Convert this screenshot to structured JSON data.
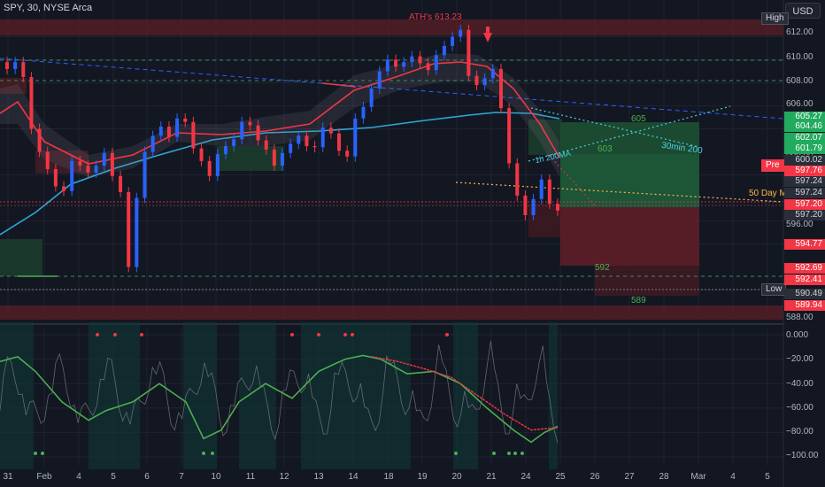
{
  "header": {
    "symbol": "SPY, 30, NYSE Arca",
    "currency": "USD"
  },
  "annotations": {
    "ath": "ATH's 613.23",
    "level_605": "605",
    "level_603": "603",
    "level_592": "592",
    "level_589": "589",
    "fifty_day": "50 Day M",
    "thirty_min": "30min 200",
    "ma_200": "1h 200MA"
  },
  "tags": {
    "high": "High",
    "low": "Low",
    "pre": "Pre"
  },
  "price_axis": {
    "ticks": [
      "612.00",
      "610.00",
      "608.00",
      "606.00",
      "604.00",
      "600.00",
      "596.00",
      "594.00",
      "590.00",
      "588.00"
    ]
  },
  "price_labels": [
    {
      "text": "605.27",
      "kind": "green"
    },
    {
      "text": "604.46",
      "kind": "green"
    },
    {
      "text": "602.07",
      "kind": "green"
    },
    {
      "text": "601.79",
      "kind": "green"
    },
    {
      "text": "600.02",
      "kind": "dark"
    },
    {
      "text": "597.76",
      "kind": "red"
    },
    {
      "text": "597.24",
      "kind": "dark"
    },
    {
      "text": "597.24",
      "kind": "dark"
    },
    {
      "text": "597.20",
      "kind": "red"
    },
    {
      "text": "597.20",
      "kind": "dark"
    },
    {
      "text": "594.77",
      "kind": "red"
    },
    {
      "text": "592.69",
      "kind": "red"
    },
    {
      "text": "592.41",
      "kind": "red"
    },
    {
      "text": "590.49",
      "kind": "dark"
    },
    {
      "text": "589.94",
      "kind": "red"
    }
  ],
  "osc_axis": {
    "ticks": [
      "0.000",
      "−20.00",
      "−40.00",
      "−60.00",
      "−80.00",
      "−100.00"
    ]
  },
  "date_axis": {
    "ticks": [
      "31",
      "Feb",
      "4",
      "5",
      "6",
      "7",
      "10",
      "11",
      "12",
      "13",
      "14",
      "18",
      "19",
      "20",
      "21",
      "24",
      "25",
      "26",
      "27",
      "28",
      "Mar",
      "4",
      "5"
    ]
  },
  "colors": {
    "bg": "#131722",
    "up": "#2962ff",
    "down": "#f23645",
    "neutral": "#787b86",
    "ema_fast": "#f23645",
    "ma_200": "#2ea7d8",
    "green": "#089981",
    "grid": "#1f2330"
  },
  "chart_data": {
    "type": "candlestick",
    "price_range": [
      587.5,
      613.5
    ],
    "oscillator_range": [
      -100,
      0
    ],
    "candles_close": [
      609.2,
      609.8,
      608.5,
      604,
      602,
      600.5,
      599,
      598.6,
      601.2,
      600.8,
      600.2,
      600.8,
      601.9,
      599.9,
      598.5,
      592,
      598,
      602,
      603.4,
      604.2,
      603.3,
      604.9,
      604.6,
      602.3,
      601.2,
      599.9,
      601.8,
      602.5,
      603.1,
      604.6,
      604.3,
      603,
      602.2,
      600.8,
      601.9,
      602.7,
      603.4,
      602.5,
      602.4,
      604.1,
      603.6,
      602.1,
      601.6,
      604.9,
      605.9,
      607.5,
      609,
      610,
      609.4,
      609.8,
      610.3,
      609.7,
      609.1,
      610.4,
      611.2,
      612,
      612.6,
      608.6,
      607.8,
      608.4,
      609.2,
      605.8,
      601,
      598.2,
      596.5,
      597.9,
      599.6,
      597.5,
      596.9
    ]
  }
}
